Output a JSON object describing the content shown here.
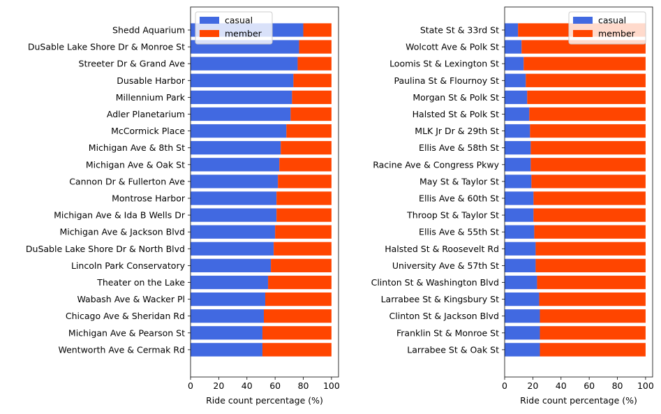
{
  "colors": {
    "casual": "#4169E1",
    "member": "#FF4500"
  },
  "chart_data": [
    {
      "type": "bar",
      "orientation": "horizontal",
      "stacked": true,
      "categories": [
        "Shedd Aquarium",
        "DuSable Lake Shore Dr & Monroe St",
        "Streeter Dr & Grand Ave",
        "Dusable Harbor",
        "Millennium Park",
        "Adler Planetarium",
        "McCormick Place",
        "Michigan Ave & 8th St",
        "Michigan Ave & Oak St",
        "Cannon Dr & Fullerton Ave",
        "Montrose Harbor",
        "Michigan Ave & Ida B Wells Dr",
        "Michigan Ave & Jackson Blvd",
        "DuSable Lake Shore Dr & North Blvd",
        "Lincoln Park Conservatory",
        "Theater on the Lake",
        "Wabash Ave & Wacker Pl",
        "Chicago Ave & Sheridan Rd",
        "Michigan Ave & Pearson St",
        "Wentworth Ave & Cermak Rd"
      ],
      "series": [
        {
          "name": "casual",
          "values": [
            80,
            77,
            76,
            73,
            72,
            71,
            68,
            64,
            63,
            62,
            61,
            61,
            60,
            59,
            57,
            55,
            53,
            52,
            51,
            51
          ]
        },
        {
          "name": "member",
          "values": [
            20,
            23,
            24,
            27,
            28,
            29,
            32,
            36,
            37,
            38,
            39,
            39,
            40,
            41,
            43,
            45,
            47,
            48,
            49,
            49
          ]
        }
      ],
      "xlabel": "Ride count percentage (%)",
      "ylabel": "",
      "xlim": [
        0,
        105
      ],
      "xticks": [
        0,
        20,
        40,
        60,
        80,
        100
      ],
      "legend": "top-left",
      "grid": false
    },
    {
      "type": "bar",
      "orientation": "horizontal",
      "stacked": true,
      "categories": [
        "State St & 33rd St",
        "Wolcott Ave & Polk St",
        "Loomis St & Lexington St",
        "Paulina St & Flournoy St",
        "Morgan St & Polk St",
        "Halsted St & Polk St",
        "MLK Jr Dr & 29th St",
        "Ellis Ave & 58th St",
        "Racine Ave & Congress Pkwy",
        "May St & Taylor St",
        "Ellis Ave & 60th St",
        "Throop St & Taylor St",
        "Ellis Ave & 55th St",
        "Halsted St & Roosevelt Rd",
        "University Ave & 57th St",
        "Clinton St & Washington Blvd",
        "Larrabee St & Kingsbury St",
        "Clinton St & Jackson Blvd",
        "Franklin St & Monroe St",
        "Larrabee St & Oak St"
      ],
      "series": [
        {
          "name": "casual",
          "values": [
            9.5,
            12,
            13.5,
            15,
            16,
            17.5,
            18,
            18.5,
            18.5,
            19,
            20.5,
            20.5,
            21,
            22,
            22,
            23,
            24.5,
            25,
            25,
            25
          ]
        },
        {
          "name": "member",
          "values": [
            90.5,
            88,
            86.5,
            85,
            84,
            82.5,
            82,
            81.5,
            81.5,
            81,
            79.5,
            79.5,
            79,
            78,
            78,
            77,
            75.5,
            75,
            75,
            75
          ]
        }
      ],
      "xlabel": "Ride count percentage (%)",
      "ylabel": "",
      "xlim": [
        0,
        105
      ],
      "xticks": [
        0,
        20,
        40,
        60,
        80,
        100
      ],
      "legend": "top-right",
      "grid": false
    }
  ]
}
